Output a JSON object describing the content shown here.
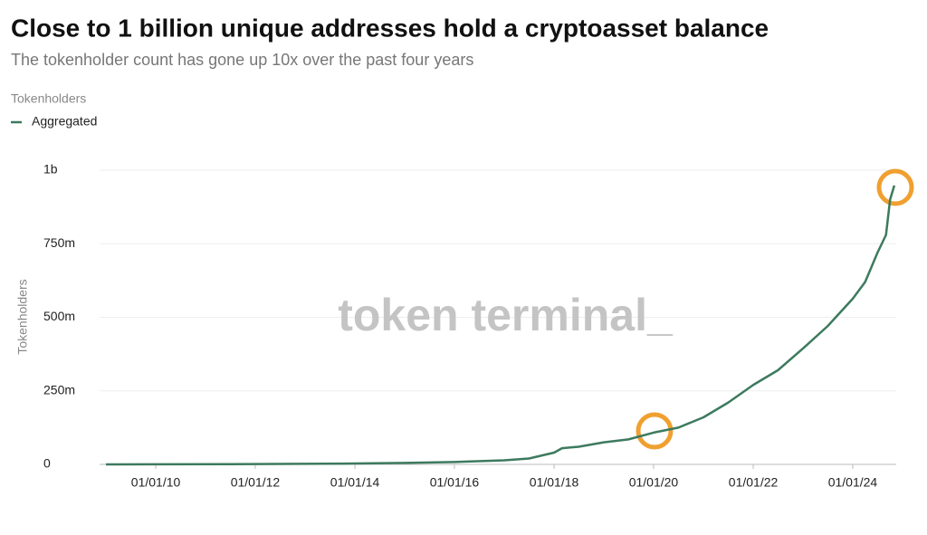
{
  "chart_data": {
    "type": "line",
    "title": "Close to 1 billion unique addresses hold a cryptoasset balance",
    "subtitle": "The tokenholder count has gone up 10x over the past four years",
    "legend_title": "Tokenholders",
    "y_label": "Tokenholders",
    "watermark": "token terminal_",
    "grid": true,
    "xlim": [
      "2008-11-15",
      "2024-11-15"
    ],
    "xticks": [
      {
        "value": "2010-01-01",
        "label": "01/01/10"
      },
      {
        "value": "2012-01-01",
        "label": "01/01/12"
      },
      {
        "value": "2014-01-01",
        "label": "01/01/14"
      },
      {
        "value": "2016-01-01",
        "label": "01/01/16"
      },
      {
        "value": "2018-01-01",
        "label": "01/01/18"
      },
      {
        "value": "2020-01-01",
        "label": "01/01/20"
      },
      {
        "value": "2022-01-01",
        "label": "01/01/22"
      },
      {
        "value": "2024-01-01",
        "label": "01/01/24"
      }
    ],
    "ylim": [
      0,
      1000000000
    ],
    "yticks": [
      0,
      {
        "value": 250000000,
        "label": "250m"
      },
      {
        "value": 500000000,
        "label": "500m"
      },
      {
        "value": 750000000,
        "label": "750m"
      },
      {
        "value": 1000000000,
        "label": "1b"
      }
    ],
    "x": [
      "2009-01-01",
      "2010-01-01",
      "2012-01-01",
      "2014-01-01",
      "2015-01-01",
      "2016-01-01",
      "2017-01-01",
      "2017-07-01",
      "2018-01-01",
      "2018-03-01",
      "2018-07-01",
      "2019-01-01",
      "2019-07-01",
      "2020-01-01",
      "2020-07-01",
      "2021-01-01",
      "2021-07-01",
      "2022-01-01",
      "2022-07-01",
      "2023-01-01",
      "2023-07-01",
      "2024-01-01",
      "2024-04-01",
      "2024-07-01",
      "2024-09-01",
      "2024-10-01",
      "2024-11-01"
    ],
    "series": [
      {
        "name": "Aggregated",
        "color": "#3d7a5e",
        "values": [
          0,
          500000,
          1000000,
          3000000,
          5000000,
          8000000,
          14000000,
          20000000,
          40000000,
          55000000,
          60000000,
          75000000,
          85000000,
          108000000,
          125000000,
          160000000,
          210000000,
          270000000,
          320000000,
          394000000,
          470000000,
          563000000,
          620000000,
          720000000,
          780000000,
          900000000,
          948000000
        ]
      }
    ]
  }
}
